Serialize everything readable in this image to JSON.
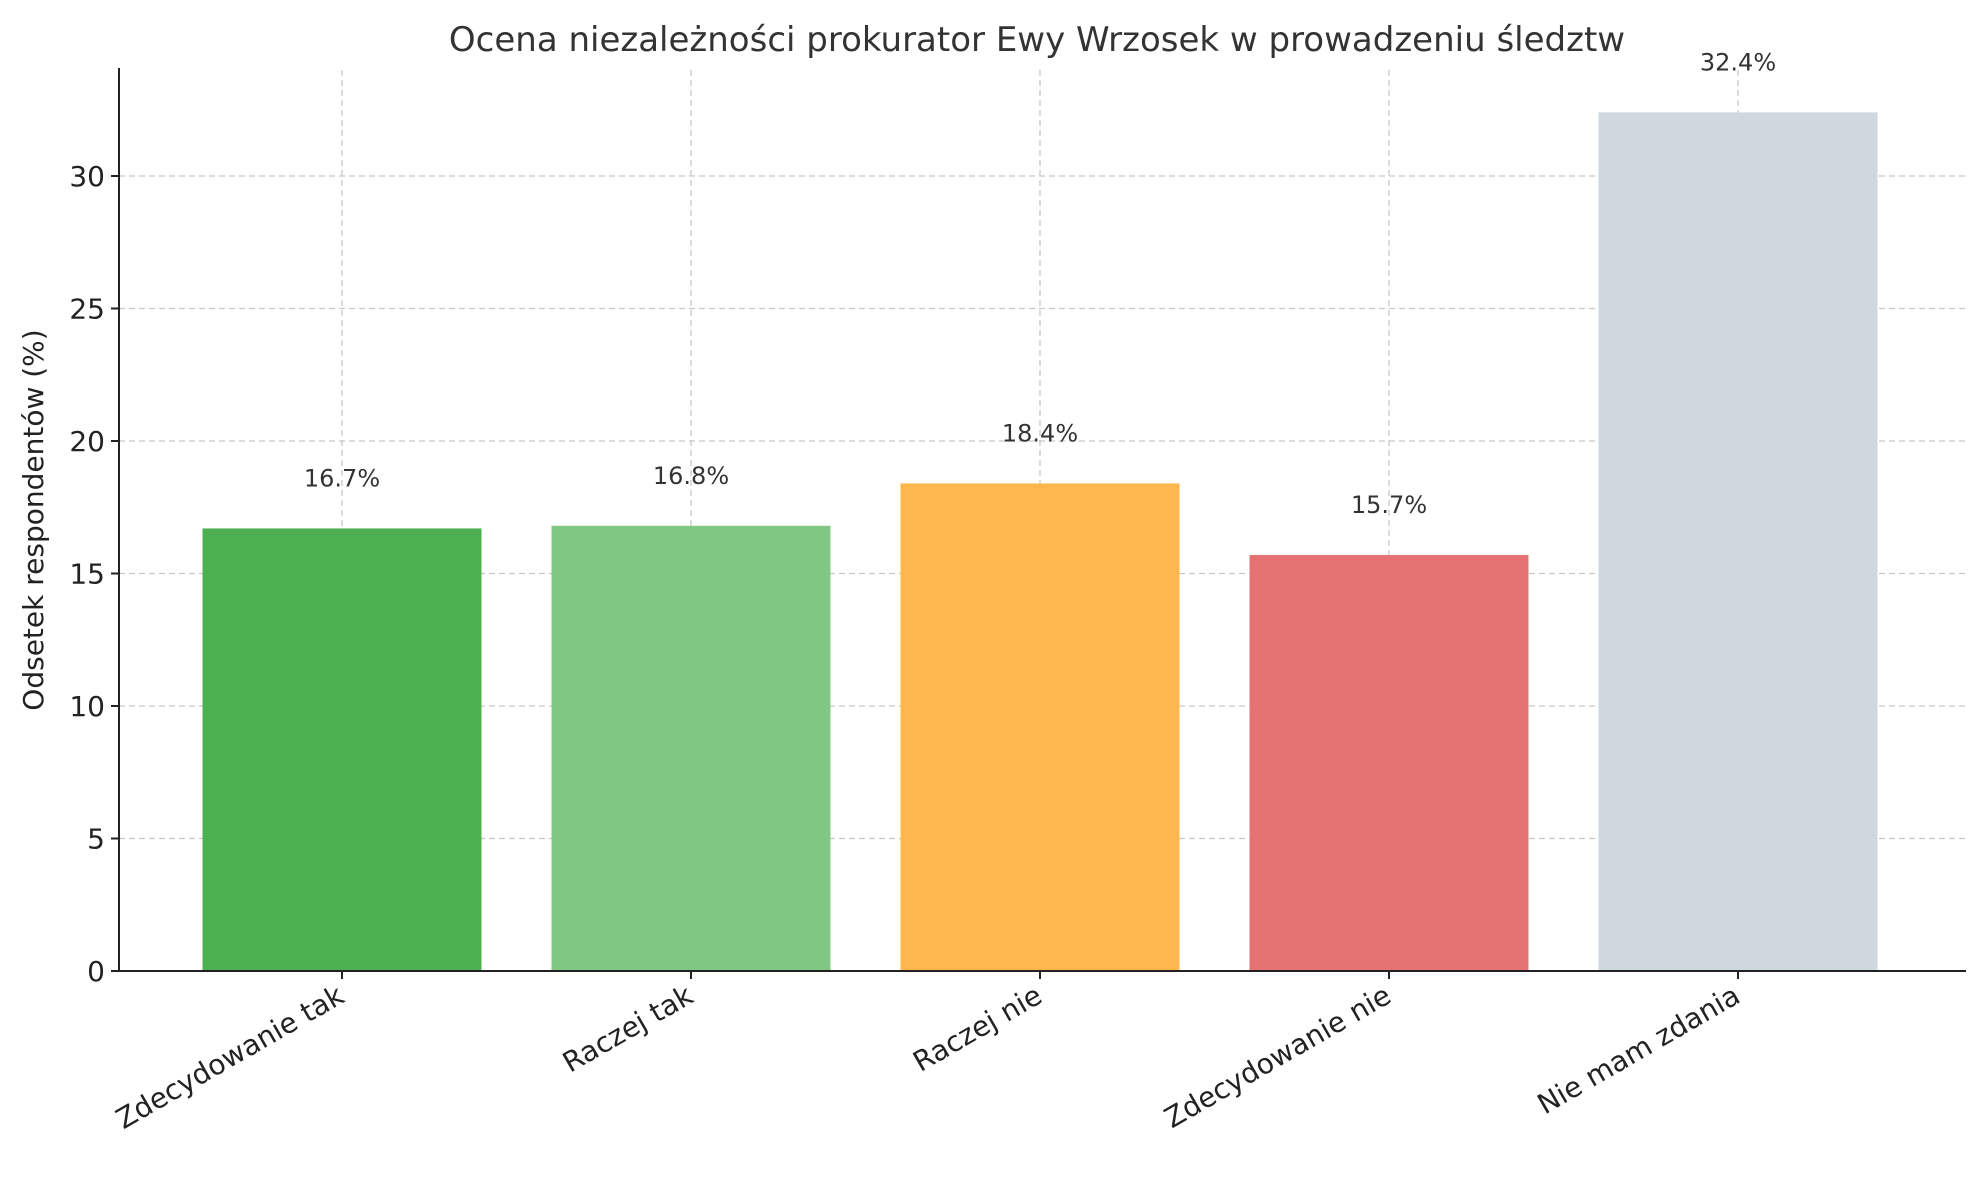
{
  "chart_data": {
    "type": "bar",
    "title": "Ocena niezależności prokurator Ewy Wrzosek w prowadzeniu śledztw",
    "xlabel": "",
    "ylabel": "Odsetek respondentów (%)",
    "categories": [
      "Zdecydowanie tak",
      "Raczej tak",
      "Raczej nie",
      "Zdecydowanie nie",
      "Nie mam zdania"
    ],
    "values": [
      16.7,
      16.8,
      18.4,
      15.7,
      32.4
    ],
    "value_labels": [
      "16.7%",
      "16.8%",
      "18.4%",
      "15.7%",
      "32.4%"
    ],
    "colors": [
      "#4caf50",
      "#81c784",
      "#ffb74d",
      "#e57373",
      "#cfd8dc"
    ],
    "ylim": [
      0,
      34
    ],
    "yticks": [
      0,
      5,
      10,
      15,
      20,
      25,
      30
    ],
    "grid": true,
    "legend": "none"
  }
}
